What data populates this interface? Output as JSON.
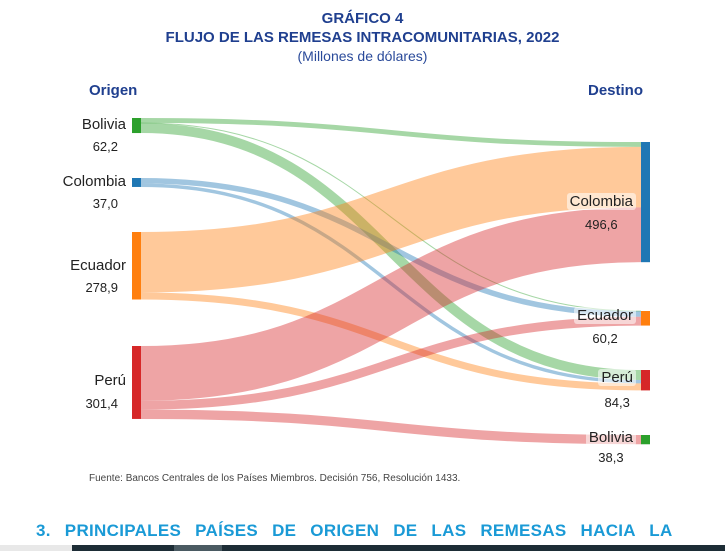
{
  "title": {
    "line1": "GRÁFICO 4",
    "line2": "FLUJO DE LAS REMESAS INTRACOMUNITARIAS, 2022",
    "units": "(Millones de dólares)"
  },
  "headers": {
    "origin": "Origen",
    "destination": "Destino"
  },
  "chart_data": {
    "type": "sankey",
    "title": "FLUJO DE LAS REMESAS INTRACOMUNITARIAS, 2022",
    "units": "Millones de dólares",
    "sources": [
      {
        "name": "Bolivia",
        "value": "62,2",
        "total": 62.2,
        "color": "#2ca02c"
      },
      {
        "name": "Colombia",
        "value": "37,0",
        "total": 37.0,
        "color": "#1f77b4"
      },
      {
        "name": "Ecuador",
        "value": "278,9",
        "total": 278.9,
        "color": "#ff7f0e"
      },
      {
        "name": "Perú",
        "value": "301,4",
        "total": 301.4,
        "color": "#d62728"
      }
    ],
    "targets": [
      {
        "name": "Colombia",
        "value": "496,6",
        "total": 496.6,
        "color": "#1f77b4"
      },
      {
        "name": "Ecuador",
        "value": "60,2",
        "total": 60.2,
        "color": "#ff7f0e"
      },
      {
        "name": "Perú",
        "value": "84,3",
        "total": 84.3,
        "color": "#d62728"
      },
      {
        "name": "Bolivia",
        "value": "38,3",
        "total": 38.3,
        "color": "#2ca02c"
      }
    ],
    "links": [
      {
        "from": "Bolivia",
        "to": "Colombia",
        "value": 20.0
      },
      {
        "from": "Bolivia",
        "to": "Ecuador",
        "value": 1.0
      },
      {
        "from": "Bolivia",
        "to": "Perú",
        "value": 41.2
      },
      {
        "from": "Colombia",
        "to": "Ecuador",
        "value": 22.8
      },
      {
        "from": "Colombia",
        "to": "Perú",
        "value": 14.2
      },
      {
        "from": "Ecuador",
        "to": "Colombia",
        "value": 250.0
      },
      {
        "from": "Ecuador",
        "to": "Perú",
        "value": 28.9
      },
      {
        "from": "Perú",
        "to": "Colombia",
        "value": 226.6
      },
      {
        "from": "Perú",
        "to": "Ecuador",
        "value": 36.5
      },
      {
        "from": "Perú",
        "to": "Bolivia",
        "value": 38.3
      }
    ]
  },
  "source_note": "Fuente: Bancos Centrales de los Países Miembros. Decisión 756, Resolución 1433.",
  "section_heading": "3. PRINCIPALES PAÍSES DE ORIGEN DE LAS REMESAS HACIA LA"
}
